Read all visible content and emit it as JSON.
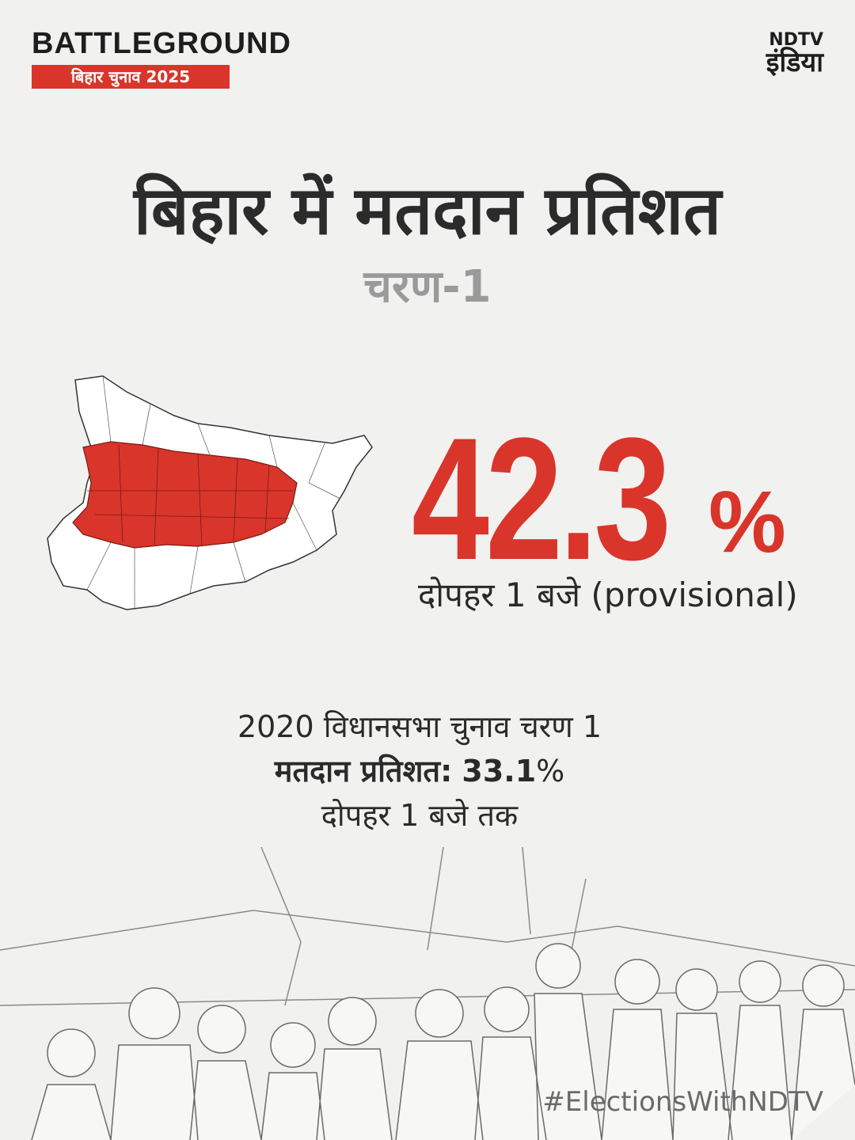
{
  "header": {
    "brand": "BATTLEGROUND",
    "subtitle": "बिहार चुनाव 2025",
    "logo_top": "NDTV",
    "logo_bottom": "इंडिया"
  },
  "title": "बिहार में मतदान प्रतिशत",
  "phase": "चरण-1",
  "turnout": {
    "value": "42.3",
    "unit": "%",
    "note": "दोपहर 1 बजे (provisional)"
  },
  "comparison": {
    "line1": "2020 विधानसभा चुनाव चरण 1",
    "label": "मतदान प्रतिशत:",
    "value": "33.1",
    "unit": "%",
    "line3": "दोपहर 1 बजे तक"
  },
  "hashtag": "#ElectionsWithNDTV"
}
